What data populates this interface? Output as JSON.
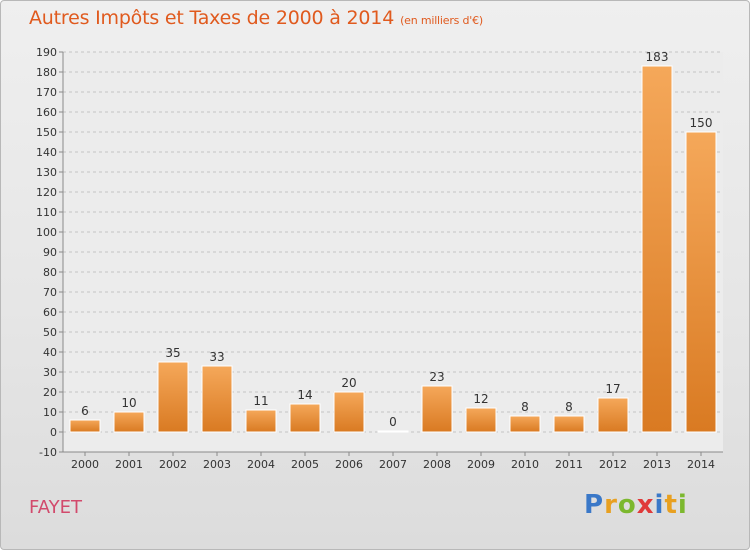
{
  "header": {
    "title": "Autres Impôts et Taxes de 2000 à 2014",
    "subtitle": "(en milliers d'€)"
  },
  "footer": {
    "commune": "FAYET",
    "logo": {
      "letters": [
        {
          "ch": "P",
          "color": "#3a78c8"
        },
        {
          "ch": "r",
          "color": "#e8a020"
        },
        {
          "ch": "o",
          "color": "#7cb82e"
        },
        {
          "ch": "x",
          "color": "#e03a3a"
        },
        {
          "ch": "i",
          "color": "#3a78c8"
        },
        {
          "ch": "t",
          "color": "#e8a020"
        },
        {
          "ch": "i",
          "color": "#7cb82e"
        }
      ]
    }
  },
  "colors": {
    "bar_light": "#f5a85a",
    "bar_dark": "#d97a22",
    "title": "#e05a1e",
    "commune": "#d24a6c"
  },
  "chart_data": {
    "type": "bar",
    "categories": [
      "2000",
      "2001",
      "2002",
      "2003",
      "2004",
      "2005",
      "2006",
      "2007",
      "2008",
      "2009",
      "2010",
      "2011",
      "2012",
      "2013",
      "2014"
    ],
    "values": [
      6,
      10,
      35,
      33,
      11,
      14,
      20,
      0,
      23,
      12,
      8,
      8,
      17,
      183,
      150
    ],
    "ylim": [
      -10,
      190
    ],
    "yticks": [
      -10,
      0,
      10,
      20,
      30,
      40,
      50,
      60,
      70,
      80,
      90,
      100,
      110,
      120,
      130,
      140,
      150,
      160,
      170,
      180,
      190
    ],
    "grid": true,
    "xlabel": "",
    "ylabel": ""
  }
}
